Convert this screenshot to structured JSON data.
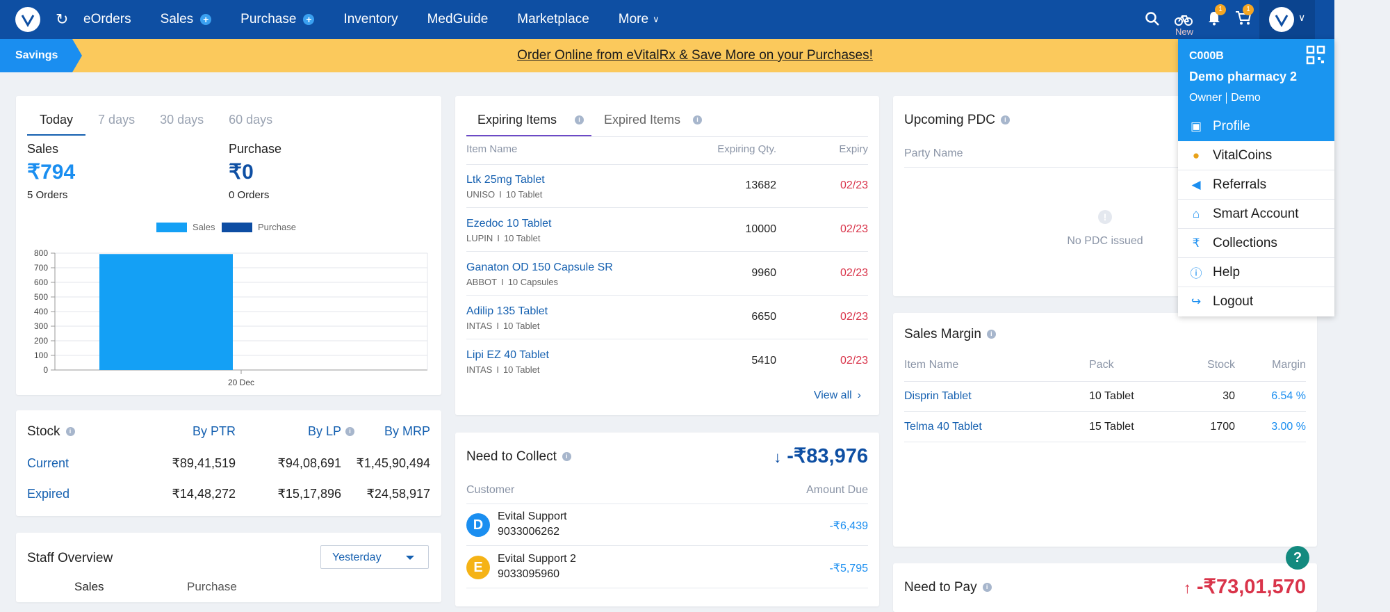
{
  "nav": {
    "items": [
      "eOrders",
      "Sales",
      "Purchase",
      "Inventory",
      "MedGuide",
      "Marketplace",
      "More"
    ],
    "bike_new_label": "New",
    "notif_count": "1",
    "cart_count": "1"
  },
  "banner": {
    "tag": "Savings",
    "promo": "Order Online from eVitalRx & Save More on your Purchases!"
  },
  "summary": {
    "tabs": [
      "Today",
      "7 days",
      "30 days",
      "60 days"
    ],
    "active_tab": "Today",
    "sales_label": "Sales",
    "sales_value": "₹794",
    "sales_orders": "5 Orders",
    "purchase_label": "Purchase",
    "purchase_value": "₹0",
    "purchase_orders": "0 Orders"
  },
  "chart_data": {
    "type": "bar",
    "categories": [
      "20 Dec"
    ],
    "series": [
      {
        "name": "Sales",
        "values": [
          794
        ],
        "color": "#14a0f5"
      },
      {
        "name": "Purchase",
        "values": [
          0
        ],
        "color": "#0d4da3"
      }
    ],
    "yticks": [
      0,
      100,
      200,
      300,
      400,
      500,
      600,
      700,
      800
    ],
    "ylim": [
      0,
      800
    ],
    "legend": "top-center",
    "grid": true
  },
  "stock": {
    "title": "Stock",
    "headers": [
      "By PTR",
      "By LP",
      "By MRP"
    ],
    "rows": [
      {
        "label": "Current",
        "ptr": "₹89,41,519",
        "lp": "₹94,08,691",
        "mrp": "₹1,45,90,494"
      },
      {
        "label": "Expired",
        "ptr": "₹14,48,272",
        "lp": "₹15,17,896",
        "mrp": "₹24,58,917"
      }
    ]
  },
  "staff": {
    "title": "Staff Overview",
    "period": "Yesterday",
    "col1": "Sales",
    "col2": "Purchase"
  },
  "expiring": {
    "tabs": [
      "Expiring Items",
      "Expired Items"
    ],
    "headers": [
      "Item Name",
      "Expiring Qty.",
      "Expiry"
    ],
    "rows": [
      {
        "name": "Ltk 25mg Tablet",
        "mfr": "UNISO",
        "pack": "10 Tablet",
        "qty": "13682",
        "expiry": "02/23"
      },
      {
        "name": "Ezedoc 10 Tablet",
        "mfr": "LUPIN",
        "pack": "10 Tablet",
        "qty": "10000",
        "expiry": "02/23"
      },
      {
        "name": "Ganaton OD 150 Capsule SR",
        "mfr": "ABBOT",
        "pack": "10 Capsules",
        "qty": "9960",
        "expiry": "02/23"
      },
      {
        "name": "Adilip 135 Tablet",
        "mfr": "INTAS",
        "pack": "10 Tablet",
        "qty": "6650",
        "expiry": "02/23"
      },
      {
        "name": "Lipi EZ 40 Tablet",
        "mfr": "INTAS",
        "pack": "10 Tablet",
        "qty": "5410",
        "expiry": "02/23"
      }
    ],
    "sep": "I",
    "view_all": "View all"
  },
  "collect": {
    "title": "Need to Collect",
    "total": "-₹83,976",
    "headers": [
      "Customer",
      "Amount Due"
    ],
    "rows": [
      {
        "initial": "D",
        "name": "Evital Support",
        "phone": "9033006262",
        "amount": "-₹6,439",
        "color": "#1a8ef0"
      },
      {
        "initial": "E",
        "name": "Evital Support 2",
        "phone": "9033095960",
        "amount": "-₹5,795",
        "color": "#f5b316"
      }
    ]
  },
  "pdc": {
    "title": "Upcoming PDC",
    "header": "Party Name",
    "empty": "No PDC issued"
  },
  "margin": {
    "title": "Sales Margin",
    "headers": [
      "Item Name",
      "Pack",
      "Stock",
      "Margin"
    ],
    "rows": [
      {
        "name": "Disprin Tablet",
        "pack": "10 Tablet",
        "stock": "30",
        "margin": "6.54 %"
      },
      {
        "name": "Telma 40 Tablet",
        "pack": "15 Tablet",
        "stock": "1700",
        "margin": "3.00 %"
      }
    ]
  },
  "pay": {
    "title": "Need to Pay",
    "total": "-₹73,01,570"
  },
  "dropdown": {
    "code": "C000B",
    "pharmacy": "Demo pharmacy 2",
    "role": "Owner",
    "user": "Demo",
    "items": [
      "Profile",
      "VitalCoins",
      "Referrals",
      "Smart Account",
      "Collections",
      "Help",
      "Logout"
    ]
  },
  "help_button": "?"
}
